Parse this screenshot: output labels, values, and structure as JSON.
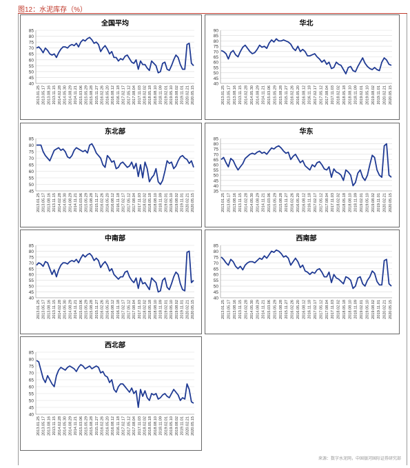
{
  "header": {
    "title": "图12：水泥库存（%）"
  },
  "source": "来源：数字水泥网，中国银河国际证券研究部",
  "x_labels": [
    "2013.01.25",
    "2013.05.17",
    "2013.08.16",
    "2013.11.15",
    "2014.02.28",
    "2014.05.30",
    "2014.08.29",
    "2014.11.21",
    "2015.03.06",
    "2015.05.29",
    "2015.08.28",
    "2015.11.27",
    "2016.02.26",
    "2016.05.20",
    "2016.08.12",
    "2016.11.18",
    "2017.02.17",
    "2017.05.12",
    "2017.08.04",
    "2017.11.03",
    "2018.02.02",
    "2018.05.18",
    "2018.08.10",
    "2018.11.09",
    "2019.02.01",
    "2019.05.10",
    "2019.08.02",
    "2019.11.01",
    "2020.02.21",
    "2020.05.15"
  ],
  "chart_data": [
    {
      "type": "line",
      "title": "全国平均",
      "ylim": [
        40,
        85
      ],
      "yticks": [
        40,
        45,
        50,
        55,
        60,
        65,
        70,
        75,
        80,
        85
      ],
      "color": "#1f3a93",
      "series": [
        {
          "values": [
            70,
            71,
            69,
            66,
            70,
            68,
            65,
            64,
            65,
            62,
            66,
            69,
            71,
            71,
            70,
            72,
            73,
            72,
            74,
            71,
            75,
            77,
            76,
            78,
            79,
            77,
            74,
            75,
            73,
            67,
            70,
            72,
            69,
            65,
            67,
            62,
            62,
            59,
            61,
            60,
            63,
            64,
            61,
            58,
            57,
            60,
            52,
            59,
            56,
            56,
            53,
            51,
            59,
            57,
            55,
            49,
            50,
            57,
            58,
            52,
            51,
            55,
            60,
            64,
            62,
            56,
            52,
            52,
            73,
            74,
            57,
            55
          ]
        }
      ]
    },
    {
      "type": "line",
      "title": "华北",
      "ylim": [
        40,
        90
      ],
      "yticks": [
        40,
        45,
        50,
        55,
        60,
        65,
        70,
        75,
        80,
        85,
        90
      ],
      "color": "#1f3a93",
      "series": [
        {
          "values": [
            71,
            70,
            68,
            63,
            69,
            71,
            67,
            65,
            70,
            74,
            76,
            73,
            70,
            68,
            69,
            72,
            76,
            74,
            75,
            73,
            78,
            81,
            79,
            82,
            80,
            80,
            81,
            80,
            79,
            77,
            73,
            71,
            75,
            70,
            72,
            70,
            66,
            66,
            67,
            68,
            65,
            63,
            60,
            62,
            58,
            60,
            54,
            55,
            60,
            58,
            57,
            53,
            49,
            55,
            56,
            52,
            51,
            56,
            60,
            64,
            59,
            56,
            54,
            53,
            55,
            53,
            52,
            60,
            64,
            62,
            58,
            57
          ]
        }
      ]
    },
    {
      "type": "line",
      "title": "东北部",
      "ylim": [
        45,
        85
      ],
      "yticks": [
        45,
        50,
        55,
        60,
        65,
        70,
        75,
        80,
        85
      ],
      "color": "#1f3a93",
      "series": [
        {
          "values": [
            80,
            80,
            80,
            75,
            72,
            70,
            68,
            72,
            76,
            77,
            78,
            76,
            77,
            75,
            71,
            70,
            72,
            76,
            78,
            77,
            76,
            75,
            76,
            74,
            80,
            81,
            78,
            74,
            72,
            70,
            65,
            63,
            72,
            70,
            67,
            68,
            62,
            63,
            66,
            67,
            65,
            63,
            64,
            67,
            62,
            66,
            56,
            65,
            55,
            67,
            62,
            52,
            55,
            57,
            62,
            52,
            50,
            53,
            60,
            68,
            66,
            67,
            62,
            64,
            68,
            71,
            72,
            70,
            69,
            66,
            68,
            63
          ]
        }
      ]
    },
    {
      "type": "line",
      "title": "华东",
      "ylim": [
        35,
        85
      ],
      "yticks": [
        35,
        40,
        45,
        50,
        55,
        60,
        65,
        70,
        75,
        80,
        85
      ],
      "color": "#1f3a93",
      "series": [
        {
          "values": [
            65,
            67,
            62,
            58,
            66,
            64,
            59,
            55,
            58,
            61,
            66,
            68,
            70,
            71,
            70,
            72,
            73,
            71,
            72,
            70,
            73,
            76,
            75,
            77,
            78,
            76,
            73,
            71,
            72,
            65,
            68,
            70,
            66,
            62,
            64,
            59,
            57,
            55,
            60,
            58,
            62,
            63,
            60,
            56,
            55,
            58,
            48,
            56,
            53,
            52,
            50,
            45,
            55,
            53,
            50,
            40,
            43,
            52,
            55,
            48,
            45,
            50,
            60,
            69,
            67,
            55,
            50,
            48,
            78,
            80,
            50,
            48
          ]
        }
      ]
    },
    {
      "type": "line",
      "title": "中南部",
      "ylim": [
        40,
        85
      ],
      "yticks": [
        40,
        45,
        50,
        55,
        60,
        65,
        70,
        75,
        80,
        85
      ],
      "color": "#1f3a93",
      "series": [
        {
          "values": [
            68,
            70,
            69,
            67,
            71,
            70,
            65,
            60,
            64,
            58,
            64,
            68,
            70,
            70,
            69,
            71,
            72,
            71,
            73,
            70,
            74,
            77,
            75,
            77,
            78,
            76,
            72,
            74,
            72,
            66,
            69,
            71,
            68,
            63,
            65,
            60,
            58,
            56,
            58,
            58,
            62,
            63,
            58,
            55,
            53,
            57,
            48,
            57,
            52,
            53,
            50,
            47,
            57,
            55,
            53,
            45,
            46,
            55,
            57,
            49,
            47,
            52,
            58,
            62,
            60,
            52,
            47,
            46,
            79,
            80,
            53,
            55
          ]
        }
      ]
    },
    {
      "type": "line",
      "title": "西南部",
      "ylim": [
        40,
        85
      ],
      "yticks": [
        40,
        45,
        50,
        55,
        60,
        65,
        70,
        75,
        80,
        85
      ],
      "color": "#1f3a93",
      "series": [
        {
          "values": [
            75,
            73,
            70,
            68,
            73,
            71,
            67,
            65,
            67,
            64,
            68,
            70,
            71,
            71,
            70,
            72,
            74,
            73,
            76,
            74,
            77,
            80,
            79,
            81,
            80,
            78,
            75,
            76,
            74,
            68,
            71,
            74,
            71,
            66,
            68,
            63,
            62,
            60,
            62,
            61,
            64,
            65,
            62,
            58,
            58,
            62,
            53,
            60,
            57,
            56,
            54,
            52,
            58,
            57,
            55,
            48,
            50,
            57,
            58,
            52,
            50,
            55,
            58,
            63,
            61,
            54,
            51,
            51,
            72,
            73,
            52,
            50
          ]
        }
      ]
    },
    {
      "type": "line",
      "title": "西北部",
      "ylim": [
        40,
        85
      ],
      "yticks": [
        40,
        45,
        50,
        55,
        60,
        65,
        70,
        75,
        80,
        85
      ],
      "color": "#1f3a93",
      "series": [
        {
          "values": [
            79,
            78,
            72,
            66,
            63,
            68,
            65,
            62,
            60,
            68,
            72,
            74,
            73,
            72,
            74,
            75,
            74,
            73,
            71,
            74,
            76,
            75,
            73,
            74,
            75,
            73,
            74,
            75,
            74,
            70,
            71,
            68,
            67,
            63,
            65,
            58,
            56,
            60,
            62,
            62,
            60,
            58,
            56,
            59,
            55,
            57,
            45,
            58,
            53,
            57,
            52,
            50,
            55,
            54,
            55,
            51,
            52,
            54,
            55,
            53,
            52,
            55,
            58,
            56,
            54,
            50,
            52,
            51,
            62,
            58,
            49,
            48
          ]
        }
      ]
    }
  ]
}
